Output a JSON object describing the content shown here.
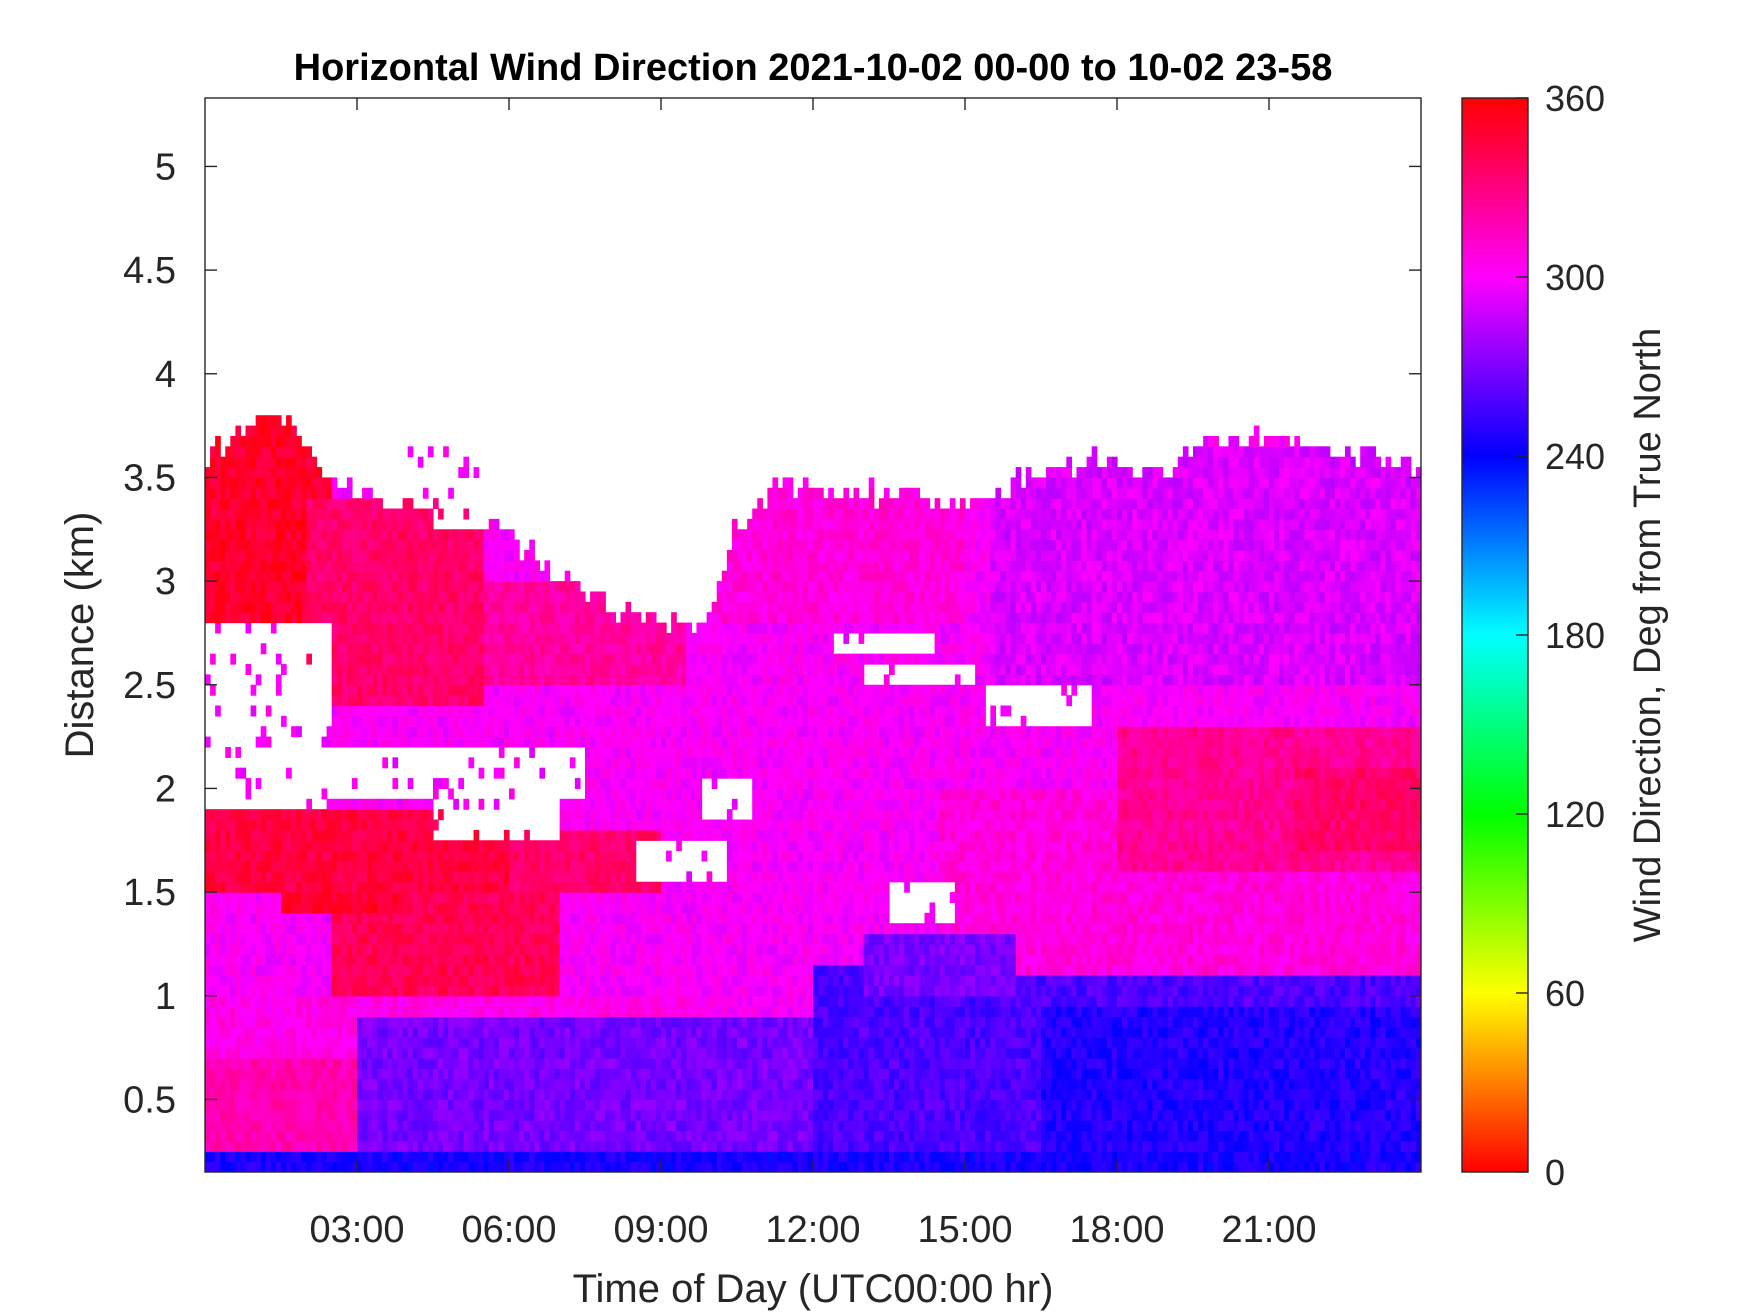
{
  "chart_data": {
    "type": "heatmap",
    "title": "Horizontal Wind Direction 2021-10-02 00-00 to 10-02 23-58",
    "xlabel": "Time of Day (UTC00:00 hr)",
    "ylabel": "Distance (km)",
    "xlim_hours": [
      0,
      24
    ],
    "ylim_km": [
      0.15,
      5.33
    ],
    "xticks": [
      {
        "value": 3,
        "label": "03:00"
      },
      {
        "value": 6,
        "label": "06:00"
      },
      {
        "value": 9,
        "label": "09:00"
      },
      {
        "value": 12,
        "label": "12:00"
      },
      {
        "value": 15,
        "label": "15:00"
      },
      {
        "value": 18,
        "label": "18:00"
      },
      {
        "value": 21,
        "label": "21:00"
      }
    ],
    "yticks": [
      {
        "value": 0.5,
        "label": "0.5"
      },
      {
        "value": 1,
        "label": "1"
      },
      {
        "value": 1.5,
        "label": "1.5"
      },
      {
        "value": 2,
        "label": "2"
      },
      {
        "value": 2.5,
        "label": "2.5"
      },
      {
        "value": 3,
        "label": "3"
      },
      {
        "value": 3.5,
        "label": "3.5"
      },
      {
        "value": 4,
        "label": "4"
      },
      {
        "value": 4.5,
        "label": "4.5"
      },
      {
        "value": 5,
        "label": "5"
      }
    ],
    "colorbar": {
      "label": "Wind Direction, Deg from True North",
      "range": [
        0,
        360
      ],
      "ticks": [
        {
          "value": 0,
          "label": "0"
        },
        {
          "value": 60,
          "label": "60"
        },
        {
          "value": 120,
          "label": "120"
        },
        {
          "value": 180,
          "label": "180"
        },
        {
          "value": 240,
          "label": "240"
        },
        {
          "value": 300,
          "label": "300"
        },
        {
          "value": 360,
          "label": "360"
        }
      ],
      "colormap": "hsv"
    },
    "data_top_km": [
      [
        0.0,
        3.6
      ],
      [
        1.0,
        3.7
      ],
      [
        1.6,
        3.8
      ],
      [
        2.5,
        3.5
      ],
      [
        3.5,
        3.35
      ],
      [
        4.0,
        3.6
      ],
      [
        5.0,
        3.6
      ],
      [
        6.0,
        3.2
      ],
      [
        7.0,
        3.0
      ],
      [
        8.0,
        2.85
      ],
      [
        9.0,
        2.8
      ],
      [
        9.9,
        2.75
      ],
      [
        10.5,
        3.25
      ],
      [
        11.2,
        3.45
      ],
      [
        12.0,
        3.4
      ],
      [
        13.5,
        3.4
      ],
      [
        15.0,
        3.35
      ],
      [
        16.5,
        3.5
      ],
      [
        17.5,
        3.55
      ],
      [
        19.0,
        3.5
      ],
      [
        20.0,
        3.65
      ],
      [
        22.0,
        3.65
      ],
      [
        24.0,
        3.5
      ]
    ],
    "gaps": [
      {
        "t0": 0.0,
        "t1": 2.5,
        "z0": 1.9,
        "z1": 2.8
      },
      {
        "t0": 2.5,
        "t1": 7.5,
        "z0": 1.95,
        "z1": 2.2
      },
      {
        "t0": 4.5,
        "t1": 7.0,
        "z0": 1.75,
        "z1": 2.15
      },
      {
        "t0": 8.5,
        "t1": 10.3,
        "z0": 1.55,
        "z1": 1.75
      },
      {
        "t0": 9.8,
        "t1": 10.8,
        "z0": 1.85,
        "z1": 2.05
      },
      {
        "t0": 12.4,
        "t1": 14.4,
        "z0": 2.65,
        "z1": 2.75
      },
      {
        "t0": 13.0,
        "t1": 15.2,
        "z0": 2.48,
        "z1": 2.6
      },
      {
        "t0": 15.4,
        "t1": 17.5,
        "z0": 2.3,
        "z1": 2.5
      },
      {
        "t0": 13.5,
        "t1": 14.8,
        "z0": 1.35,
        "z1": 1.55
      },
      {
        "t0": 4.5,
        "t1": 5.7,
        "z0": 3.25,
        "z1": 3.5
      },
      {
        "t0": 3.5,
        "t1": 5.0,
        "z0": 3.35,
        "z1": 3.6
      }
    ],
    "field": [
      {
        "t0": 0.0,
        "t1": 24.0,
        "z0": 0.15,
        "z1": 5.33,
        "value": 300
      },
      {
        "t0": 0.0,
        "t1": 10.0,
        "z0": 0.15,
        "z1": 1.0,
        "value": 305
      },
      {
        "t0": 3.0,
        "t1": 12.0,
        "z0": 0.15,
        "z1": 0.9,
        "value": 268
      },
      {
        "t0": 12.0,
        "t1": 24.0,
        "z0": 0.15,
        "z1": 1.15,
        "value": 258
      },
      {
        "t0": 16.5,
        "t1": 24.0,
        "z0": 0.15,
        "z1": 0.95,
        "value": 248
      },
      {
        "t0": 0.0,
        "t1": 24.0,
        "z0": 0.15,
        "z1": 0.25,
        "value": 245
      },
      {
        "t0": 0.0,
        "t1": 3.0,
        "z0": 0.25,
        "z1": 0.7,
        "value": 318
      },
      {
        "t0": 2.5,
        "t1": 7.0,
        "z0": 1.0,
        "z1": 1.5,
        "value": 340
      },
      {
        "t0": 1.5,
        "t1": 4.0,
        "z0": 1.4,
        "z1": 1.6,
        "value": 350
      },
      {
        "t0": 0.0,
        "t1": 6.5,
        "z0": 1.5,
        "z1": 1.9,
        "value": 345
      },
      {
        "t0": 6.0,
        "t1": 9.0,
        "z0": 1.5,
        "z1": 1.8,
        "value": 335
      },
      {
        "t0": 0.0,
        "t1": 2.5,
        "z0": 2.8,
        "z1": 3.8,
        "value": 350
      },
      {
        "t0": 2.0,
        "t1": 5.5,
        "z0": 2.4,
        "z1": 3.4,
        "value": 335
      },
      {
        "t0": 5.5,
        "t1": 9.5,
        "z0": 2.5,
        "z1": 3.0,
        "value": 322
      },
      {
        "t0": 7.0,
        "t1": 13.0,
        "z0": 2.0,
        "z1": 2.5,
        "value": 300
      },
      {
        "t0": 10.0,
        "t1": 15.0,
        "z0": 2.8,
        "z1": 3.45,
        "value": 308
      },
      {
        "t0": 15.5,
        "t1": 24.0,
        "z0": 2.5,
        "z1": 3.65,
        "value": 292
      },
      {
        "t0": 13.0,
        "t1": 16.0,
        "z0": 1.9,
        "z1": 2.4,
        "value": 300
      },
      {
        "t0": 14.5,
        "t1": 24.0,
        "z0": 1.1,
        "z1": 2.0,
        "value": 308
      },
      {
        "t0": 18.0,
        "t1": 24.0,
        "z0": 1.6,
        "z1": 2.3,
        "value": 325
      },
      {
        "t0": 21.5,
        "t1": 24.0,
        "z0": 1.7,
        "z1": 2.1,
        "value": 335
      },
      {
        "t0": 13.0,
        "t1": 16.0,
        "z0": 1.0,
        "z1": 1.3,
        "value": 268
      }
    ]
  }
}
